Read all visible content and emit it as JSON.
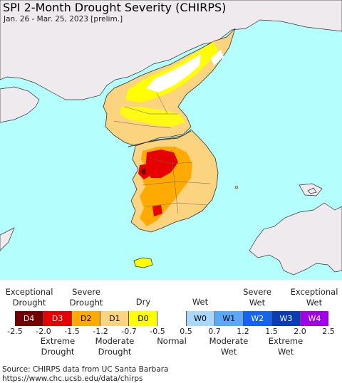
{
  "header": {
    "title": "SPI 2-Month Drought Severity (CHIRPS)",
    "subtitle": "Jan. 26 - Mar. 25, 2023 [prelim.]"
  },
  "colors": {
    "sea": "#b4fefe",
    "land_outside": "#eeeaee",
    "border": "#333333"
  },
  "legend": {
    "top_labels": [
      {
        "text": "Exceptional\nDrought",
        "under": "D4"
      },
      {
        "text": "Severe\nDrought",
        "under": "D2"
      },
      {
        "text": "Dry",
        "under": "D0"
      },
      {
        "text": "Wet",
        "under": "W0"
      },
      {
        "text": "Severe\nWet",
        "under": "W2"
      },
      {
        "text": "Exceptional\nWet",
        "under": "W4"
      }
    ],
    "categories": [
      {
        "code": "D4",
        "color": "#730000",
        "text_color": "#ffffff"
      },
      {
        "code": "D3",
        "color": "#e60000",
        "text_color": "#ffffff"
      },
      {
        "code": "D2",
        "color": "#ffaa00",
        "text_color": "#000000"
      },
      {
        "code": "D1",
        "color": "#fcd37f",
        "text_color": "#000000"
      },
      {
        "code": "D0",
        "color": "#ffff00",
        "text_color": "#000000"
      },
      {
        "code": "",
        "color": "#ffffff",
        "text_color": "#000000"
      },
      {
        "code": "W0",
        "color": "#aad7fc",
        "text_color": "#000000"
      },
      {
        "code": "W1",
        "color": "#5aa8f8",
        "text_color": "#000000"
      },
      {
        "code": "W2",
        "color": "#1464f0",
        "text_color": "#ffffff"
      },
      {
        "code": "W3",
        "color": "#0a3cb4",
        "text_color": "#ffffff"
      },
      {
        "code": "W4",
        "color": "#a000e6",
        "text_color": "#ffffff"
      }
    ],
    "tick_values": [
      "-2.5",
      "-2.0",
      "-1.5",
      "-1.2",
      "-0.7",
      "-0.5",
      "0.5",
      "0.7",
      "1.2",
      "1.5",
      "2.0",
      "2.5"
    ],
    "bottom_labels": [
      {
        "text": "Extreme\nDrought",
        "under": "D3"
      },
      {
        "text": "Moderate\nDrought",
        "under": "D1"
      },
      {
        "text": "Normal",
        "under": ""
      },
      {
        "text": "Moderate\nWet",
        "under": "W1"
      },
      {
        "text": "Extreme\nWet",
        "under": "W3"
      }
    ]
  },
  "footer": {
    "source_line": "Source: CHIRPS data from UC Santa Barbara",
    "url_line": "https://www.chc.ucsb.edu/data/chirps"
  }
}
